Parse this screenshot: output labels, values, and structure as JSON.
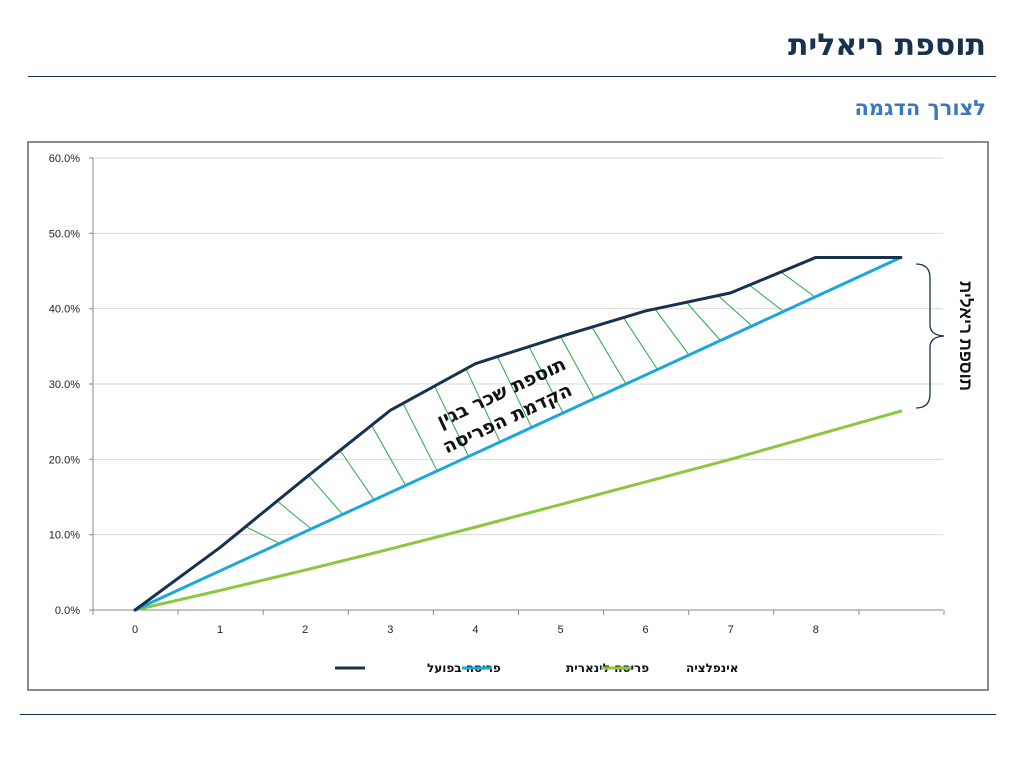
{
  "slide": {
    "title": "תוספת ריאלית",
    "subtitle": "לצורך הדגמה"
  },
  "annotations": {
    "bracket_label": "תוספת ריאלית",
    "region_label_line1": "תוספת שכר בגין",
    "region_label_line2": "הקדמת הפריסה"
  },
  "colors": {
    "actual": "#17324f",
    "linear": "#1ba7de",
    "inflation": "#8dc63f",
    "hatch": "#2aa84a",
    "title": "#17324f",
    "subtitle": "#3a78c0"
  },
  "chart_data": {
    "type": "line",
    "title": "",
    "xlabel": "",
    "ylabel": "",
    "x_ticks": [
      "0",
      "1",
      "2",
      "3",
      "4",
      "5",
      "6",
      "7",
      "8"
    ],
    "xlim": [
      0,
      9
    ],
    "ylim": [
      0,
      0.6
    ],
    "y_ticks": [
      "0.0%",
      "10.0%",
      "20.0%",
      "30.0%",
      "40.0%",
      "50.0%",
      "60.0%"
    ],
    "grid": true,
    "legend_position": "bottom",
    "series": [
      {
        "name": "פריסה בפועל",
        "color_key": "actual",
        "x": [
          0,
          1,
          2,
          3,
          4,
          5,
          6,
          7,
          8,
          9
        ],
        "y": [
          0,
          0.083,
          0.175,
          0.265,
          0.327,
          0.363,
          0.397,
          0.421,
          0.468,
          0.468
        ]
      },
      {
        "name": "פריסה לינארית",
        "color_key": "linear",
        "x": [
          0,
          9
        ],
        "y": [
          0,
          0.468
        ]
      },
      {
        "name": "אינפלציה",
        "color_key": "inflation",
        "x": [
          0,
          1,
          2,
          3,
          4,
          5,
          6,
          7,
          8,
          9
        ],
        "y": [
          0,
          0.026,
          0.053,
          0.081,
          0.11,
          0.14,
          0.17,
          0.2,
          0.232,
          0.264
        ]
      }
    ]
  }
}
